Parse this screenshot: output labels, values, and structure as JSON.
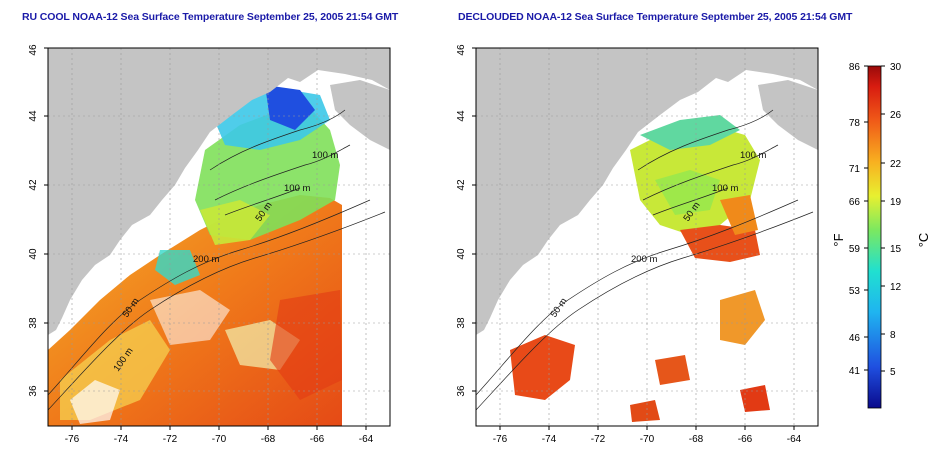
{
  "left_panel": {
    "title": "RU COOL NOAA-12 Sea Surface Temperature September 25, 2005 21:54 GMT"
  },
  "right_panel": {
    "title": "DECLOUDED NOAA-12 Sea Surface Temperature September 25, 2005 21:54 GMT"
  },
  "map_axes": {
    "lon_ticks": [
      "-76",
      "-74",
      "-72",
      "-70",
      "-68",
      "-66",
      "-64"
    ],
    "lat_ticks": [
      "36",
      "38",
      "40",
      "42",
      "44",
      "46"
    ]
  },
  "contour_labels": {
    "left": [
      "100 m",
      "100 m",
      "50 m",
      "200 m",
      "50 m",
      "100 m"
    ],
    "right": [
      "100 m",
      "100 m",
      "50 m",
      "200 m",
      "50 m"
    ]
  },
  "colorbar": {
    "fahrenheit_ticks": [
      "86",
      "78",
      "71",
      "66",
      "59",
      "53",
      "46",
      "41"
    ],
    "celsius_ticks": [
      "30",
      "26",
      "22",
      "19",
      "15",
      "12",
      "8",
      "5"
    ],
    "fahrenheit_label": "°F",
    "celsius_label": "°C"
  },
  "colors": {
    "land": "#c4c4c4",
    "title": "#1a1aa8",
    "warm": "#e24a17",
    "cool": "#1f4fe0"
  }
}
